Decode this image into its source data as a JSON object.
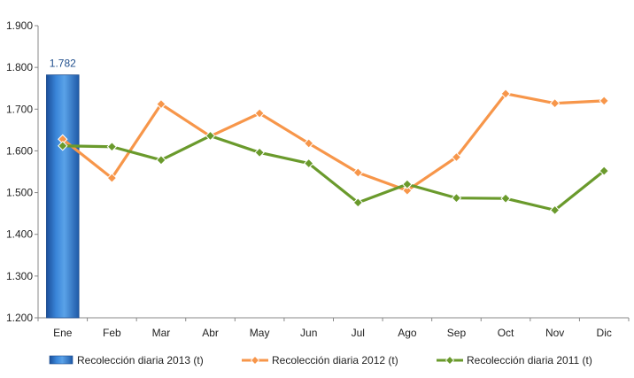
{
  "chart_data": {
    "type": "bar",
    "categories": [
      "Ene",
      "Feb",
      "Mar",
      "Abr",
      "May",
      "Jun",
      "Jul",
      "Ago",
      "Sep",
      "Oct",
      "Nov",
      "Dic"
    ],
    "ylim": [
      1200,
      1900
    ],
    "yticks": [
      1200,
      1300,
      1400,
      1500,
      1600,
      1700,
      1800,
      1900
    ],
    "ytick_labels": [
      "1.200",
      "1.300",
      "1.400",
      "1.500",
      "1.600",
      "1.700",
      "1.800",
      "1.900"
    ],
    "grid": false,
    "legend_position": "bottom",
    "series": [
      {
        "name": "Recolección diaria  2013 (t)",
        "kind": "bar",
        "color": "#2e74c9",
        "values": [
          1782,
          null,
          null,
          null,
          null,
          null,
          null,
          null,
          null,
          null,
          null,
          null
        ],
        "data_labels": [
          "1.782"
        ]
      },
      {
        "name": "Recolección diaria  2012 (t)",
        "kind": "line",
        "color": "#f7964a",
        "marker": "diamond",
        "values": [
          1628,
          1535,
          1712,
          1635,
          1690,
          1618,
          1548,
          1505,
          1585,
          1737,
          1714,
          1720
        ]
      },
      {
        "name": "Recolección diaria  2011 (t)",
        "kind": "line",
        "color": "#6a9a2c",
        "marker": "diamond",
        "values": [
          1612,
          1610,
          1578,
          1636,
          1596,
          1570,
          1476,
          1520,
          1487,
          1486,
          1458,
          1552
        ]
      }
    ]
  }
}
